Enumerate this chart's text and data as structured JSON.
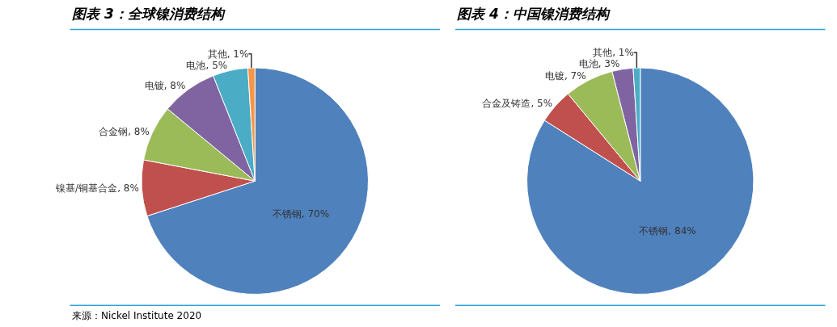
{
  "chart_data": [
    {
      "type": "pie",
      "title": "图表 3：全球镍消费结构",
      "categories": [
        "不锈钢",
        "镍基/铜基合金",
        "合金钢",
        "电镀",
        "电池",
        "其他"
      ],
      "values": [
        70,
        8,
        8,
        8,
        5,
        1
      ],
      "value_labels": [
        "70%",
        "8%",
        "8%",
        "8%",
        "5%",
        "1%"
      ],
      "colors": [
        "#4f81bd",
        "#c0504d",
        "#9bbb59",
        "#8064a2",
        "#4bacc6",
        "#f79646"
      ],
      "annotations": [
        "来源：Nickel Institute 2020"
      ]
    },
    {
      "type": "pie",
      "title": "图表 4：中国镍消费结构",
      "categories": [
        "不锈钢",
        "合金及铸造",
        "电镀",
        "电池",
        "其他"
      ],
      "values": [
        84,
        5,
        7,
        3,
        1
      ],
      "value_labels": [
        "84%",
        "5%",
        "7%",
        "3%",
        "1%"
      ],
      "colors": [
        "#4f81bd",
        "#c0504d",
        "#9bbb59",
        "#8064a2",
        "#4bacc6"
      ]
    }
  ]
}
